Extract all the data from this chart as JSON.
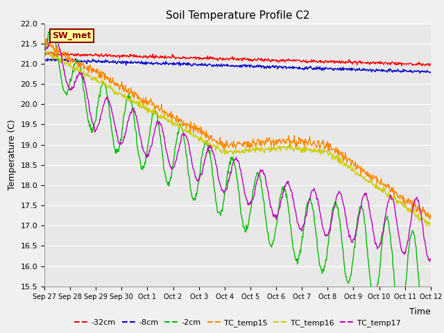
{
  "title": "Soil Temperature Profile C2",
  "xlabel": "Time",
  "ylabel": "Temperature (C)",
  "ylim": [
    15.5,
    22.0
  ],
  "yticks": [
    15.5,
    16.0,
    16.5,
    17.0,
    17.5,
    18.0,
    18.5,
    19.0,
    19.5,
    20.0,
    20.5,
    21.0,
    21.5,
    22.0
  ],
  "plot_bg_color": "#e8e8e8",
  "grid_color": "#ffffff",
  "sw_met_label": "SW_met",
  "sw_met_bg": "#ffff99",
  "sw_met_border": "#8b0000",
  "sw_met_text_color": "#8b0000",
  "series": [
    {
      "label": "-32cm",
      "color": "#ff0000",
      "lw": 1.0
    },
    {
      "label": "-8cm",
      "color": "#0000cc",
      "lw": 1.0
    },
    {
      "label": "-2cm",
      "color": "#00bb00",
      "lw": 1.0
    },
    {
      "label": "TC_temp15",
      "color": "#ff8800",
      "lw": 1.0
    },
    {
      "label": "TC_temp16",
      "color": "#cccc00",
      "lw": 1.0
    },
    {
      "label": "TC_temp17",
      "color": "#bb00bb",
      "lw": 1.0
    }
  ],
  "xtick_labels": [
    "Sep 27",
    "Sep 28",
    "Sep 29",
    "Sep 30",
    "Oct 1",
    "Oct 2",
    "Oct 3",
    "Oct 4",
    "Oct 5",
    "Oct 6",
    "Oct 7",
    "Oct 8",
    "Oct 9",
    "Oct 10",
    "Oct 11",
    "Oct 12"
  ],
  "n_points": 720,
  "figsize": [
    6.4,
    4.8
  ],
  "dpi": 100
}
